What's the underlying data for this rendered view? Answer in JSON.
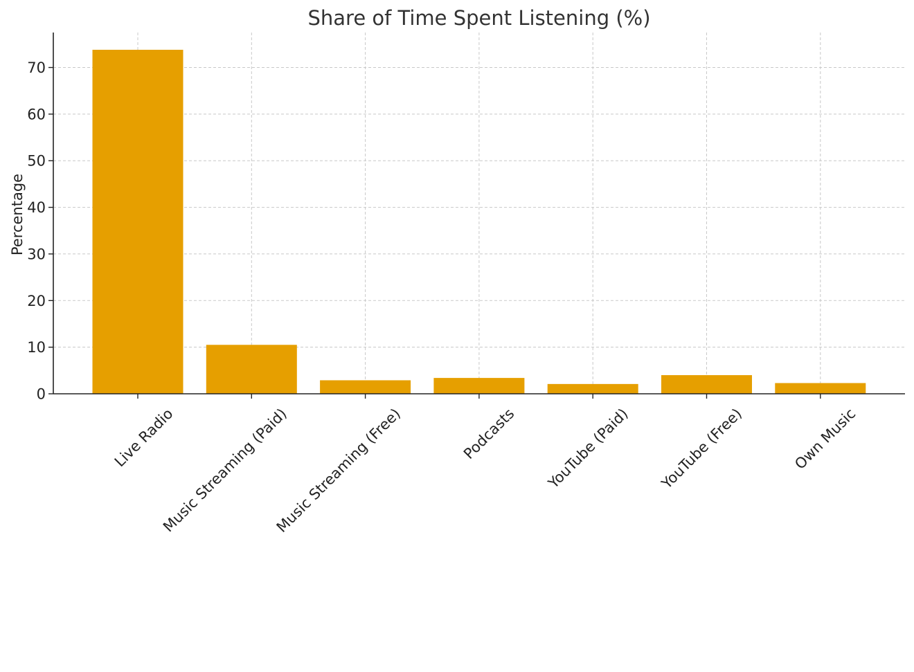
{
  "chart_data": {
    "type": "bar",
    "title": "Share of Time Spent Listening (%)",
    "xlabel": "",
    "ylabel": "Percentage",
    "categories": [
      "Live Radio",
      "Music Streaming (Paid)",
      "Music Streaming (Free)",
      "Podcasts",
      "YouTube (Paid)",
      "YouTube (Free)",
      "Own Music"
    ],
    "values": [
      73.8,
      10.5,
      2.9,
      3.4,
      2.1,
      4.0,
      2.3
    ],
    "ylim": [
      0,
      77.5
    ],
    "yticks": [
      0,
      10,
      20,
      30,
      40,
      50,
      60,
      70
    ],
    "grid": true,
    "bar_color": "#E69F00"
  }
}
